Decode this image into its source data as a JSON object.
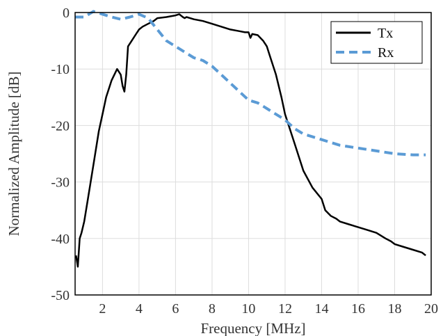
{
  "chart_data": {
    "type": "line",
    "xlabel": "Frequency [MHz]",
    "ylabel": "Normalized Amplitude [dB]",
    "xlim": [
      0.5,
      20
    ],
    "ylim": [
      -50,
      0
    ],
    "xticks": [
      2,
      4,
      6,
      8,
      10,
      12,
      14,
      16,
      18,
      20
    ],
    "yticks": [
      0,
      -10,
      -20,
      -30,
      -40,
      -50
    ],
    "xtick_labels": [
      "2",
      "4",
      "6",
      "8",
      "10",
      "12",
      "14",
      "16",
      "18",
      "20"
    ],
    "ytick_labels": [
      "0",
      "-10",
      "-20",
      "-30",
      "-40",
      "-50"
    ],
    "grid": true,
    "legend_position": "top-right",
    "series": [
      {
        "name": "Tx",
        "color": "#000000",
        "style": "solid",
        "x": [
          0.55,
          0.65,
          0.75,
          0.85,
          1.0,
          1.2,
          1.5,
          1.8,
          2.0,
          2.2,
          2.5,
          2.8,
          3.0,
          3.1,
          3.2,
          3.3,
          3.4,
          3.6,
          3.8,
          4.0,
          4.2,
          4.5,
          4.8,
          5.0,
          5.5,
          6.0,
          6.2,
          6.4,
          6.5,
          6.6,
          6.8,
          7.0,
          7.5,
          8.0,
          8.5,
          9.0,
          9.5,
          9.8,
          10.0,
          10.1,
          10.2,
          10.5,
          10.8,
          11.0,
          11.2,
          11.5,
          11.8,
          12.0,
          12.5,
          13.0,
          13.5,
          14.0,
          14.2,
          14.5,
          14.8,
          15.0,
          15.5,
          16.0,
          16.5,
          17.0,
          17.5,
          17.8,
          18.0,
          18.5,
          19.0,
          19.5,
          19.7
        ],
        "y": [
          -43,
          -45,
          -40,
          -39,
          -37,
          -33,
          -27,
          -21,
          -18,
          -15,
          -12,
          -10,
          -11,
          -13,
          -14,
          -11,
          -6,
          -5,
          -4,
          -3,
          -2.5,
          -2,
          -1.5,
          -1,
          -0.8,
          -0.5,
          -0.3,
          -0.8,
          -1,
          -0.8,
          -1,
          -1.2,
          -1.5,
          -2,
          -2.5,
          -3,
          -3.3,
          -3.5,
          -3.5,
          -4.5,
          -3.8,
          -4,
          -5,
          -6,
          -8,
          -11,
          -15,
          -18,
          -23,
          -28,
          -31,
          -33,
          -35,
          -36,
          -36.5,
          -37,
          -37.5,
          -38,
          -38.5,
          -39,
          -40,
          -40.5,
          -41,
          -41.5,
          -42,
          -42.5,
          -43
        ]
      },
      {
        "name": "Rx",
        "color": "#5b9bd5",
        "style": "dashed",
        "x": [
          0.5,
          1.0,
          1.5,
          2.0,
          2.5,
          3.0,
          3.5,
          4.0,
          4.5,
          5.0,
          5.5,
          6.0,
          6.5,
          7.0,
          7.5,
          8.0,
          8.5,
          9.0,
          9.5,
          10.0,
          10.5,
          11.0,
          11.5,
          12.0,
          12.5,
          13.0,
          13.5,
          14.0,
          15.0,
          16.0,
          17.0,
          18.0,
          19.0,
          19.7
        ],
        "y": [
          -0.8,
          -0.8,
          0.2,
          -0.3,
          -0.8,
          -1.2,
          -0.8,
          -0.3,
          -1,
          -3,
          -5,
          -6,
          -7,
          -8,
          -8.5,
          -9.5,
          -11,
          -12.5,
          -14,
          -15.5,
          -16,
          -17,
          -18,
          -19,
          -20.5,
          -21.5,
          -22,
          -22.5,
          -23.5,
          -24,
          -24.5,
          -25,
          -25.2,
          -25.2
        ]
      }
    ]
  }
}
